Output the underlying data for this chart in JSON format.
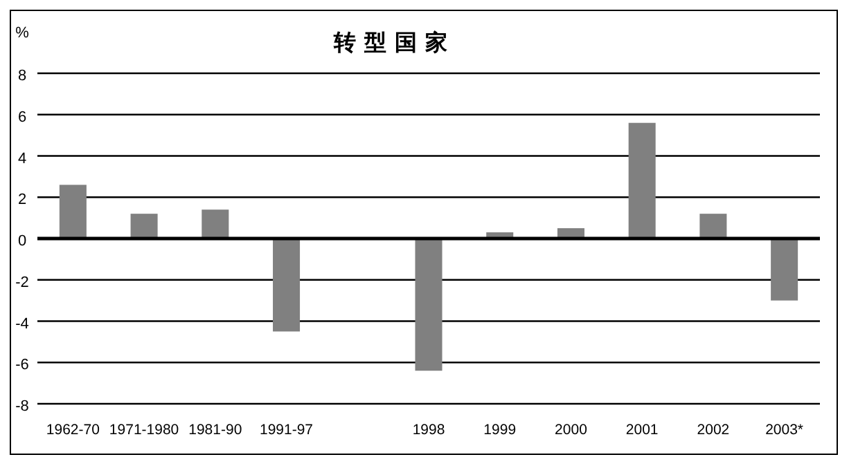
{
  "chart_data": {
    "type": "bar",
    "title": "转型国家",
    "ylabel": "%",
    "categories": [
      "1962-70",
      "1971-1980",
      "1981-90",
      "1991-97",
      null,
      "1998",
      "1999",
      "2000",
      "2001",
      "2002",
      "2003*"
    ],
    "values": [
      2.6,
      1.2,
      1.4,
      -4.5,
      null,
      -6.4,
      0.3,
      0.5,
      5.6,
      1.2,
      -3.0
    ],
    "color": "#808080",
    "ylim": [
      -8,
      8
    ],
    "yticks": [
      -8,
      -6,
      -4,
      -2,
      0,
      2,
      4,
      6,
      8
    ],
    "grid": "y"
  }
}
